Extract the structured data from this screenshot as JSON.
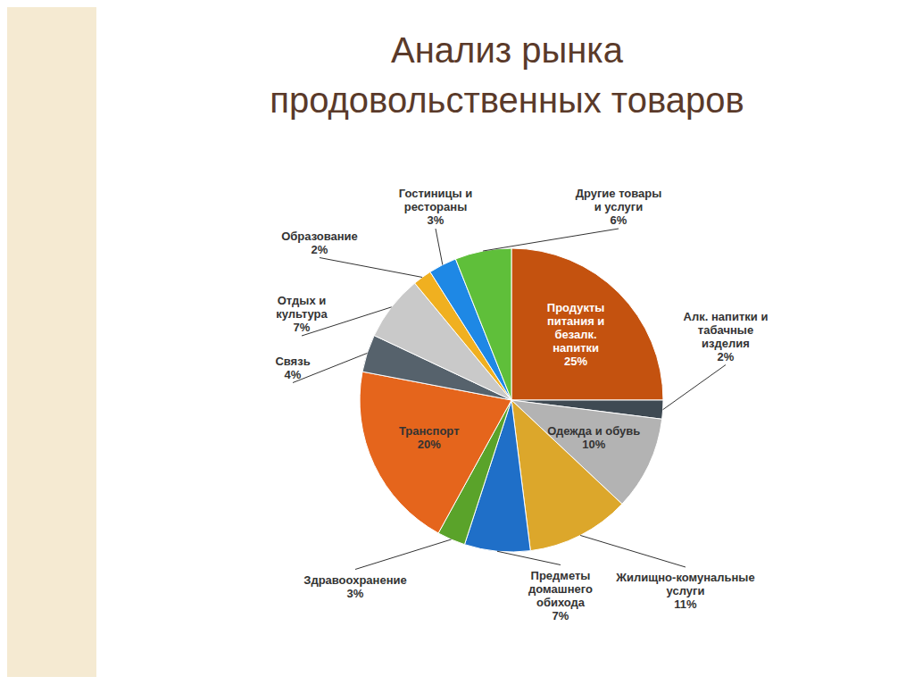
{
  "chart_data": {
    "type": "pie",
    "title": "Анализ рынка продовольственных товаров",
    "categories": [
      "Продукты питания и безалк. напитки",
      "Алк. напитки и табачные изделия",
      "Одежда и обувь",
      "Жилищно-комунальные услуги",
      "Предметы домашнего обихода",
      "Здравоохранение",
      "Транспорт",
      "Связь",
      "Отдых и культура",
      "Образование",
      "Гостиницы и рестораны",
      "Другие товары и услуги"
    ],
    "values": [
      25,
      2,
      10,
      11,
      7,
      3,
      20,
      4,
      7,
      2,
      3,
      6
    ],
    "value_labels": [
      "25%",
      "2%",
      "10%",
      "11%",
      "7%",
      "3%",
      "20%",
      "4%",
      "7%",
      "2%",
      "3%",
      "6%"
    ],
    "colors": [
      "#c4520f",
      "#3f4a53",
      "#b3b3b3",
      "#dca72b",
      "#1f6fc8",
      "#5aa32a",
      "#e5651c",
      "#56626c",
      "#c9c9c9",
      "#f0b020",
      "#1e88e5",
      "#5fbf3a"
    ],
    "data_labels": true
  }
}
